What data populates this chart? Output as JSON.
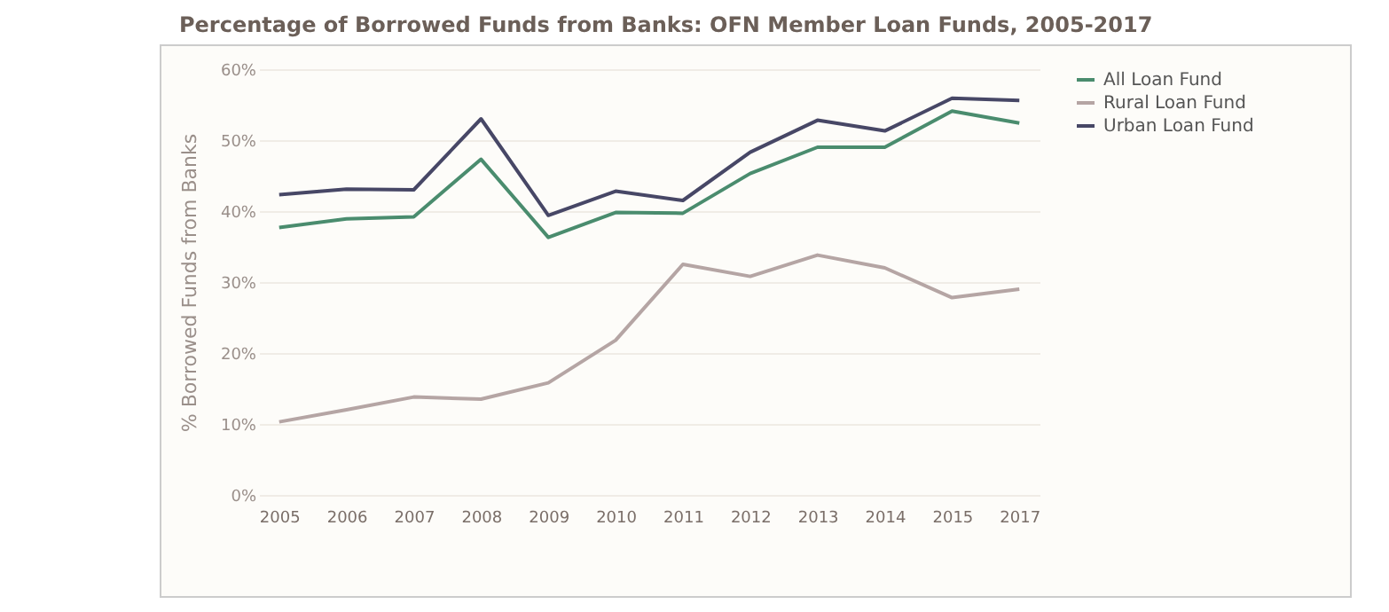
{
  "chart_data": {
    "type": "line",
    "title": "Percentage of Borrowed Funds from Banks: OFN Member Loan Funds, 2005-2017",
    "ylabel": "% Borrowed Funds from Banks",
    "categories": [
      "2005",
      "2006",
      "2007",
      "2008",
      "2009",
      "2010",
      "2011",
      "2012",
      "2013",
      "2014",
      "2015",
      "2017"
    ],
    "series": [
      {
        "name": "All Loan Fund",
        "color": "#4a8c6e",
        "values": [
          37.7,
          38.9,
          39.2,
          47.3,
          36.3,
          39.8,
          39.7,
          45.3,
          49,
          49,
          54.1,
          52.4
        ]
      },
      {
        "name": "Rural Loan Fund",
        "color": "#b5a5a4",
        "values": [
          10.3,
          12,
          13.8,
          13.5,
          15.8,
          21.8,
          32.5,
          30.8,
          33.8,
          32,
          27.8,
          29
        ]
      },
      {
        "name": "Urban Loan Fund",
        "color": "#474766",
        "values": [
          42.3,
          43.1,
          43,
          53,
          39.4,
          42.8,
          41.5,
          48.3,
          52.8,
          51.3,
          55.9,
          55.6
        ]
      }
    ],
    "ylim": [
      0,
      60
    ],
    "yticks": [
      {
        "value": 0,
        "label": "0%"
      },
      {
        "value": 10,
        "label": "10%"
      },
      {
        "value": 20,
        "label": "20%"
      },
      {
        "value": 30,
        "label": "30%"
      },
      {
        "value": 40,
        "label": "40%"
      },
      {
        "value": 50,
        "label": "50%"
      },
      {
        "value": 60,
        "label": "60%"
      }
    ],
    "grid": "y",
    "legend": "right"
  }
}
